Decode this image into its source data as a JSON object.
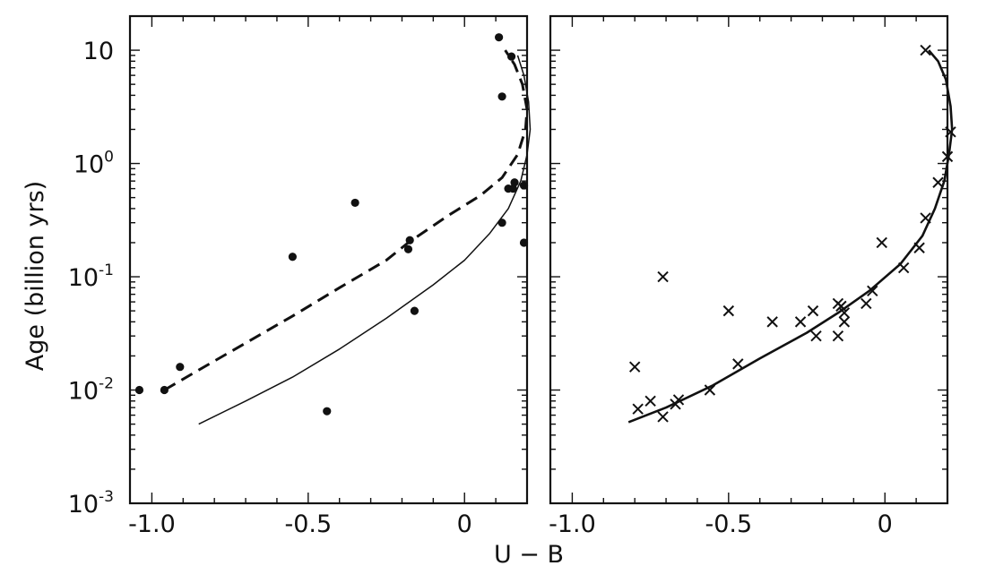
{
  "chart_data": [
    {
      "type": "scatter",
      "title": "",
      "xlabel": "U − B",
      "ylabel": "Age    (billion yrs)",
      "xlim": [
        -1.07,
        0.2
      ],
      "ylim": [
        0.001,
        20
      ],
      "y_scale": "log",
      "x_ticks": [
        {
          "value": -1.0,
          "label": "-1.0"
        },
        {
          "value": -0.5,
          "label": "-0.5"
        },
        {
          "value": 0,
          "label": "0"
        }
      ],
      "y_ticks": [
        {
          "value": 10,
          "base": "10",
          "exp": ""
        },
        {
          "value": 1,
          "base": "10",
          "exp": "0"
        },
        {
          "value": 0.1,
          "base": "10",
          "exp": "-1"
        },
        {
          "value": 0.01,
          "base": "10",
          "exp": "-2"
        },
        {
          "value": 0.001,
          "base": "10",
          "exp": "-3"
        }
      ],
      "series": [
        {
          "marker": "dot",
          "points": [
            [
              -1.04,
              0.01
            ],
            [
              -0.96,
              0.01
            ],
            [
              -0.91,
              0.016
            ],
            [
              -0.55,
              0.15
            ],
            [
              -0.35,
              0.45
            ],
            [
              -0.44,
              0.0065
            ],
            [
              -0.18,
              0.175
            ],
            [
              -0.175,
              0.21
            ],
            [
              -0.16,
              0.05
            ],
            [
              0.11,
              13.0
            ],
            [
              0.12,
              3.9
            ],
            [
              0.15,
              8.8
            ],
            [
              0.12,
              0.3
            ],
            [
              0.14,
              0.6
            ],
            [
              0.155,
              0.6
            ],
            [
              0.16,
              0.68
            ],
            [
              0.19,
              0.64
            ],
            [
              0.19,
              0.2
            ]
          ]
        },
        {
          "marker": "dashed-curve",
          "points": [
            [
              -0.96,
              0.01
            ],
            [
              -0.85,
              0.015
            ],
            [
              -0.7,
              0.026
            ],
            [
              -0.55,
              0.045
            ],
            [
              -0.4,
              0.08
            ],
            [
              -0.25,
              0.14
            ],
            [
              -0.18,
              0.2
            ],
            [
              -0.05,
              0.35
            ],
            [
              0.05,
              0.52
            ],
            [
              0.12,
              0.75
            ],
            [
              0.17,
              1.2
            ],
            [
              0.195,
              2.0
            ],
            [
              0.2,
              3.0
            ],
            [
              0.185,
              5.0
            ],
            [
              0.16,
              7.5
            ],
            [
              0.13,
              10.0
            ]
          ]
        },
        {
          "marker": "solid-curve",
          "points": [
            [
              -0.85,
              0.005
            ],
            [
              -0.7,
              0.008
            ],
            [
              -0.55,
              0.013
            ],
            [
              -0.4,
              0.023
            ],
            [
              -0.25,
              0.043
            ],
            [
              -0.1,
              0.085
            ],
            [
              0.0,
              0.14
            ],
            [
              0.08,
              0.24
            ],
            [
              0.14,
              0.4
            ],
            [
              0.18,
              0.7
            ],
            [
              0.2,
              1.2
            ],
            [
              0.21,
              2.0
            ],
            [
              0.205,
              3.5
            ],
            [
              0.19,
              6.0
            ],
            [
              0.17,
              9.0
            ]
          ]
        }
      ]
    },
    {
      "type": "scatter",
      "title": "",
      "xlabel": "U − B",
      "ylabel": "",
      "xlim": [
        -1.07,
        0.2
      ],
      "ylim": [
        0.001,
        20
      ],
      "y_scale": "log",
      "x_ticks": [
        {
          "value": -1.0,
          "label": "-1.0"
        },
        {
          "value": -0.5,
          "label": "-0.5"
        },
        {
          "value": 0,
          "label": "0"
        }
      ],
      "series": [
        {
          "marker": "cross",
          "points": [
            [
              -0.8,
              0.016
            ],
            [
              -0.79,
              0.0068
            ],
            [
              -0.75,
              0.008
            ],
            [
              -0.71,
              0.0058
            ],
            [
              -0.71,
              0.1
            ],
            [
              -0.67,
              0.0075
            ],
            [
              -0.66,
              0.0082
            ],
            [
              -0.56,
              0.01
            ],
            [
              -0.5,
              0.05
            ],
            [
              -0.47,
              0.017
            ],
            [
              -0.36,
              0.04
            ],
            [
              -0.27,
              0.04
            ],
            [
              -0.23,
              0.05
            ],
            [
              -0.22,
              0.03
            ],
            [
              -0.15,
              0.03
            ],
            [
              -0.15,
              0.058
            ],
            [
              -0.14,
              0.055
            ],
            [
              -0.13,
              0.048
            ],
            [
              -0.13,
              0.04
            ],
            [
              -0.06,
              0.058
            ],
            [
              -0.04,
              0.075
            ],
            [
              -0.01,
              0.2
            ],
            [
              0.06,
              0.12
            ],
            [
              0.11,
              0.18
            ],
            [
              0.13,
              0.33
            ],
            [
              0.17,
              0.68
            ],
            [
              0.2,
              1.15
            ],
            [
              0.21,
              1.9
            ],
            [
              0.13,
              10.0
            ]
          ]
        },
        {
          "marker": "solid-curve",
          "points": [
            [
              -0.82,
              0.0052
            ],
            [
              -0.7,
              0.007
            ],
            [
              -0.55,
              0.011
            ],
            [
              -0.4,
              0.019
            ],
            [
              -0.25,
              0.032
            ],
            [
              -0.15,
              0.048
            ],
            [
              -0.05,
              0.075
            ],
            [
              0.05,
              0.13
            ],
            [
              0.12,
              0.23
            ],
            [
              0.16,
              0.4
            ],
            [
              0.19,
              0.7
            ],
            [
              0.205,
              1.2
            ],
            [
              0.215,
              2.0
            ],
            [
              0.21,
              3.2
            ],
            [
              0.195,
              5.5
            ],
            [
              0.17,
              8.0
            ],
            [
              0.14,
              10.0
            ]
          ]
        }
      ]
    }
  ]
}
